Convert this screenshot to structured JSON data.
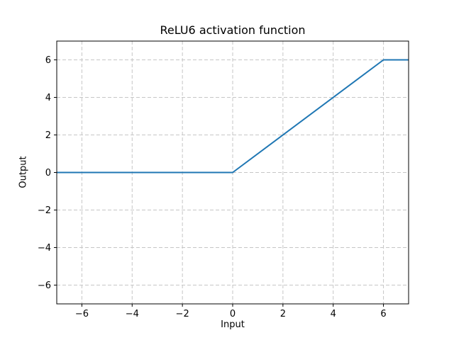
{
  "figure": {
    "background": "#ffffff"
  },
  "chart_data": {
    "type": "line",
    "title": "ReLU6 activation function",
    "xlabel": "Input",
    "ylabel": "Output",
    "xlim": [
      -7,
      7
    ],
    "ylim": [
      -7,
      7
    ],
    "xticks": [
      -6,
      -4,
      -2,
      0,
      2,
      4,
      6
    ],
    "xtick_labels": [
      "−6",
      "−4",
      "−2",
      "0",
      "2",
      "4",
      "6"
    ],
    "yticks": [
      -6,
      -4,
      -2,
      0,
      2,
      4,
      6
    ],
    "ytick_labels": [
      "−6",
      "−4",
      "−2",
      "0",
      "2",
      "4",
      "6"
    ],
    "grid": true,
    "grid_style": "dashed",
    "grid_color": "#c6c6c6",
    "legend": "none",
    "series": [
      {
        "name": "ReLU6",
        "color": "#1f77b4",
        "line_width": 2,
        "points": [
          [
            -7,
            0
          ],
          [
            0,
            0
          ],
          [
            6,
            6
          ],
          [
            7,
            6
          ]
        ]
      }
    ]
  }
}
